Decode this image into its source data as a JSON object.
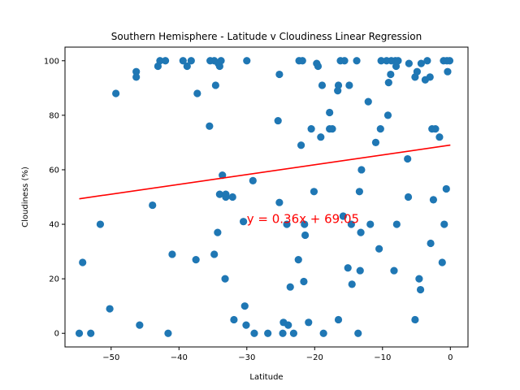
{
  "chart_data": {
    "type": "scatter",
    "title": "Southern Hemisphere - Latitude v Cloudiness Linear Regression",
    "xlabel": "Latitude",
    "ylabel": "Cloudiness (%)",
    "xlim": [
      -56.8,
      2.6
    ],
    "ylim": [
      -5,
      105
    ],
    "xticks": [
      -50,
      -40,
      -30,
      -20,
      -10,
      0
    ],
    "xtick_labels": [
      "−50",
      "−40",
      "−30",
      "−20",
      "−10",
      "0"
    ],
    "yticks": [
      0,
      20,
      40,
      60,
      80,
      100
    ],
    "ytick_labels": [
      "0",
      "20",
      "40",
      "60",
      "80",
      "100"
    ],
    "grid": false,
    "marker_color": "#1f77b4",
    "regression": {
      "slope": 0.36,
      "intercept": 69.05,
      "x_range": [
        -54.7,
        0
      ],
      "color": "#ff0000",
      "equation_label": "y = 0.36x + 69.05",
      "label_anchor": [
        -30,
        40.5
      ]
    },
    "points": [
      [
        -54.7,
        0
      ],
      [
        -54.2,
        26
      ],
      [
        -53.0,
        0
      ],
      [
        -51.6,
        40
      ],
      [
        -50.2,
        9
      ],
      [
        -49.3,
        88
      ],
      [
        -46.3,
        96
      ],
      [
        -46.3,
        94
      ],
      [
        -45.8,
        3
      ],
      [
        -43.9,
        47
      ],
      [
        -43.1,
        98
      ],
      [
        -42.8,
        100
      ],
      [
        -42.0,
        100
      ],
      [
        -41.6,
        0
      ],
      [
        -41.0,
        29
      ],
      [
        -39.4,
        100
      ],
      [
        -38.8,
        98
      ],
      [
        -38.2,
        100
      ],
      [
        -37.5,
        27
      ],
      [
        -37.3,
        88
      ],
      [
        -35.5,
        76
      ],
      [
        -35.4,
        100
      ],
      [
        -34.8,
        100
      ],
      [
        -34.8,
        29
      ],
      [
        -34.6,
        91
      ],
      [
        -34.3,
        37
      ],
      [
        -34.2,
        99
      ],
      [
        -34.0,
        98
      ],
      [
        -34.0,
        51
      ],
      [
        -33.8,
        100
      ],
      [
        -33.6,
        58
      ],
      [
        -33.2,
        20
      ],
      [
        -33.1,
        51
      ],
      [
        -33.1,
        50
      ],
      [
        -32.1,
        50
      ],
      [
        -31.9,
        5
      ],
      [
        -30.5,
        41
      ],
      [
        -30.3,
        10
      ],
      [
        -30.1,
        3
      ],
      [
        -30.0,
        100
      ],
      [
        -29.1,
        56
      ],
      [
        -28.9,
        0
      ],
      [
        -26.9,
        0
      ],
      [
        -25.4,
        78
      ],
      [
        -25.2,
        48
      ],
      [
        -25.2,
        95
      ],
      [
        -24.7,
        0
      ],
      [
        -24.6,
        4
      ],
      [
        -24.1,
        40
      ],
      [
        -23.9,
        3
      ],
      [
        -23.6,
        17
      ],
      [
        -23.1,
        0
      ],
      [
        -22.4,
        27
      ],
      [
        -22.3,
        100
      ],
      [
        -22.0,
        69
      ],
      [
        -21.8,
        100
      ],
      [
        -21.6,
        19
      ],
      [
        -21.5,
        40
      ],
      [
        -21.4,
        36
      ],
      [
        -20.9,
        4
      ],
      [
        -20.5,
        75
      ],
      [
        -20.1,
        52
      ],
      [
        -19.7,
        99
      ],
      [
        -19.5,
        98
      ],
      [
        -19.1,
        72
      ],
      [
        -18.9,
        91
      ],
      [
        -18.7,
        0
      ],
      [
        -17.8,
        81
      ],
      [
        -17.8,
        75
      ],
      [
        -17.4,
        75
      ],
      [
        -16.6,
        89
      ],
      [
        -16.5,
        91
      ],
      [
        -16.5,
        5
      ],
      [
        -16.2,
        100
      ],
      [
        -15.8,
        43
      ],
      [
        -15.6,
        100
      ],
      [
        -15.1,
        24
      ],
      [
        -14.9,
        91
      ],
      [
        -14.6,
        40
      ],
      [
        -14.5,
        18
      ],
      [
        -13.8,
        100
      ],
      [
        -13.6,
        0
      ],
      [
        -13.4,
        52
      ],
      [
        -13.3,
        23
      ],
      [
        -13.2,
        37
      ],
      [
        -13.1,
        60
      ],
      [
        -12.1,
        85
      ],
      [
        -11.8,
        40
      ],
      [
        -11.0,
        70
      ],
      [
        -10.5,
        31
      ],
      [
        -10.3,
        75
      ],
      [
        -10.2,
        100
      ],
      [
        -9.4,
        100
      ],
      [
        -9.2,
        80
      ],
      [
        -9.1,
        92
      ],
      [
        -8.8,
        95
      ],
      [
        -8.7,
        100
      ],
      [
        -8.3,
        23
      ],
      [
        -8.1,
        100
      ],
      [
        -8.0,
        98
      ],
      [
        -7.9,
        40
      ],
      [
        -7.7,
        100
      ],
      [
        -6.3,
        64
      ],
      [
        -6.2,
        50
      ],
      [
        -6.1,
        99
      ],
      [
        -5.2,
        94
      ],
      [
        -5.2,
        5
      ],
      [
        -4.9,
        96
      ],
      [
        -4.6,
        20
      ],
      [
        -4.4,
        16
      ],
      [
        -4.3,
        99
      ],
      [
        -3.7,
        93
      ],
      [
        -3.4,
        100
      ],
      [
        -3.0,
        94
      ],
      [
        -2.9,
        33
      ],
      [
        -2.7,
        75
      ],
      [
        -2.5,
        49
      ],
      [
        -2.2,
        75
      ],
      [
        -1.6,
        72
      ],
      [
        -1.2,
        26
      ],
      [
        -1.0,
        100
      ],
      [
        -0.9,
        40
      ],
      [
        -0.6,
        53
      ],
      [
        -0.5,
        100
      ],
      [
        -0.4,
        96
      ],
      [
        -0.1,
        100
      ]
    ]
  }
}
